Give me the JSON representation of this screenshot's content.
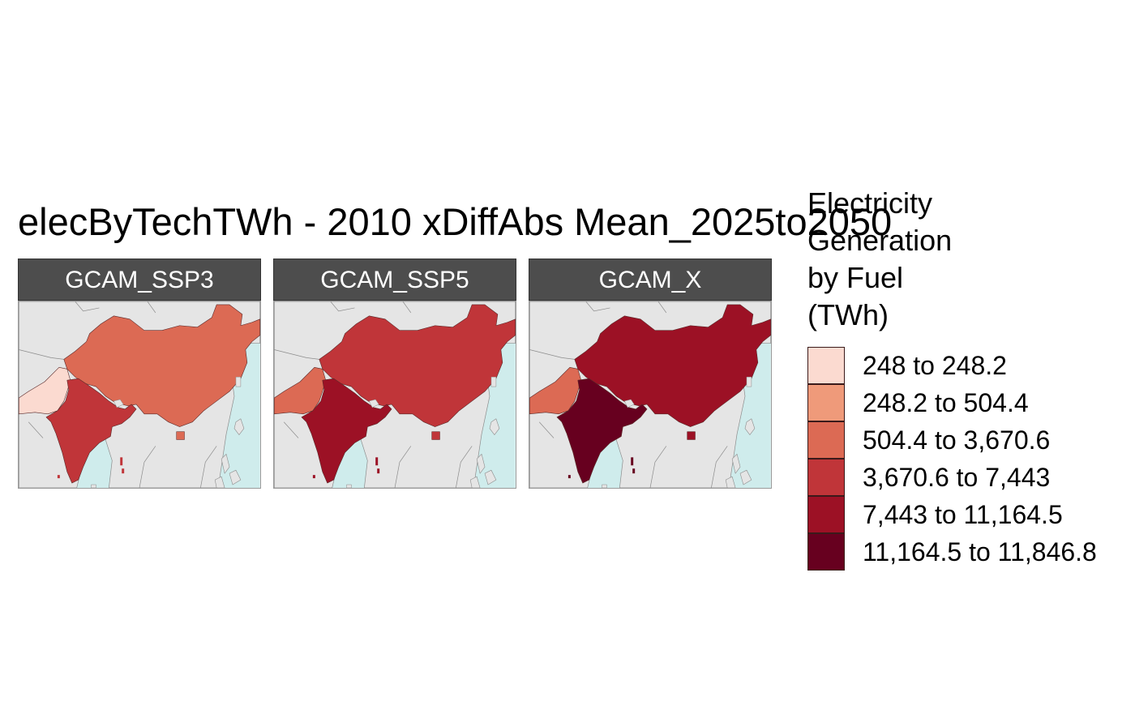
{
  "title": "elecByTechTWh - 2010 xDiffAbs Mean_2025to2050",
  "panels": [
    {
      "label": "GCAM_SSP3",
      "china": 2,
      "india": 3,
      "pakistan": 0
    },
    {
      "label": "GCAM_SSP5",
      "china": 3,
      "india": 4,
      "pakistan": 2
    },
    {
      "label": "GCAM_X",
      "china": 4,
      "india": 5,
      "pakistan": 2
    }
  ],
  "colors": {
    "ocean": "#cfecec",
    "land": "#e5e5e5",
    "border": "#8c8c8c"
  },
  "legend": {
    "title": "Electricity Generation by Fuel (TWh)",
    "items": [
      {
        "label": "248 to 248.2",
        "color": "#fbdad0"
      },
      {
        "label": "248.2 to 504.4",
        "color": "#ef9a7a"
      },
      {
        "label": "504.4 to 3,670.6",
        "color": "#dc6a54"
      },
      {
        "label": "3,670.6 to 7,443",
        "color": "#c03539"
      },
      {
        "label": "7,443 to 11,164.5",
        "color": "#9c1125"
      },
      {
        "label": "11,164.5 to 11,846.8",
        "color": "#67001f"
      }
    ]
  }
}
